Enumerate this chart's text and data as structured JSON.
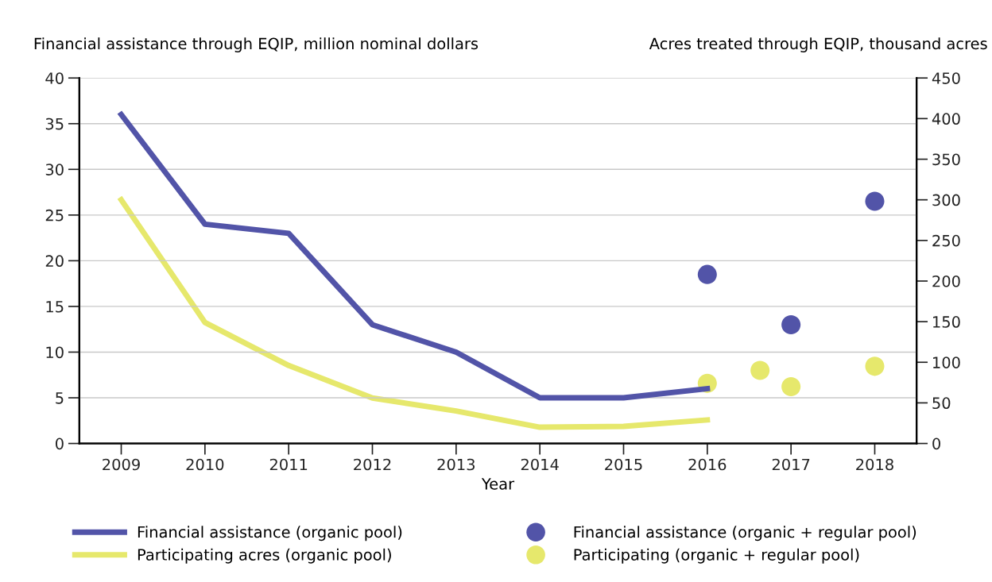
{
  "chart_data": {
    "type": "line",
    "ylabel": "Financial assistance through EQIP, million nominal dollars",
    "y2label": "Acres treated through EQIP, thousand acres",
    "xlabel": "Year",
    "xlim": [
      2008.5,
      2018.5
    ],
    "xticks": [
      2009,
      2010,
      2011,
      2012,
      2013,
      2014,
      2015,
      2016,
      2017,
      2018
    ],
    "ylim": [
      0,
      40
    ],
    "yticks": [
      0,
      5,
      10,
      15,
      20,
      25,
      30,
      35,
      40
    ],
    "y2lim": [
      0,
      450
    ],
    "y2ticks": [
      0,
      50,
      100,
      150,
      200,
      250,
      300,
      350,
      400,
      450
    ],
    "grid": "y",
    "legend": "bottom",
    "series": [
      {
        "name": "Financial assistance (organic pool)",
        "color": "#5254a8",
        "x": [
          2009,
          2010,
          2011,
          2012,
          2013,
          2014,
          2015,
          2016
        ],
        "values": [
          36,
          24,
          23,
          13,
          10,
          5,
          5,
          6
        ]
      },
      {
        "name": "Financial assistance (organic + regular pool)",
        "type": "scatter",
        "color": "#5254a8",
        "marker": "circle",
        "x": [
          2016,
          2017,
          2018
        ],
        "values": [
          18.5,
          13,
          26.5
        ]
      },
      {
        "name": "Participating acres (organic pool)",
        "axis": "y2",
        "color": "#e6e86c",
        "x": [
          2009,
          2010,
          2011,
          2012,
          2013,
          2014,
          2015,
          2016
        ],
        "values": [
          300,
          149,
          96,
          56,
          40,
          20,
          21,
          29
        ]
      },
      {
        "name": "Participating (organic + regular pool)",
        "type": "scatter",
        "axis": "y2",
        "color": "#e6e86c",
        "marker": "circle",
        "x": [
          2016,
          2016.63,
          2017,
          2018
        ],
        "values": [
          74,
          90,
          70,
          95
        ]
      }
    ]
  }
}
